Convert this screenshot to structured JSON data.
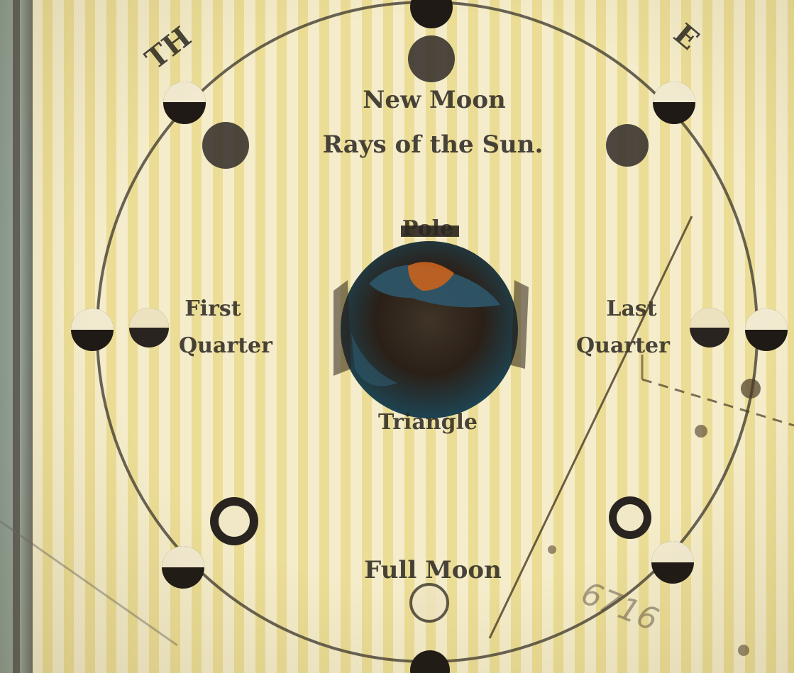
{
  "labels": {
    "title_left": "TH",
    "title_right": "E",
    "new_moon": "New Moon",
    "new_moon_subtitle": "Rays of the Sun.",
    "first_quarter_top": "First",
    "first_quarter_bottom": "Quarter",
    "last_quarter_top": "Last",
    "last_quarter_bottom": "Quarter",
    "earth_top": "Pole",
    "earth_bottom": "Triangle",
    "full_moon": "Full Moon",
    "scribble": "6716"
  },
  "colors": {
    "paper": "#ecde96",
    "ink": "#2a2621",
    "earth_blue": "#2e5a70",
    "earth_dark": "#2b2018",
    "earth_orange": "#c9631e"
  }
}
